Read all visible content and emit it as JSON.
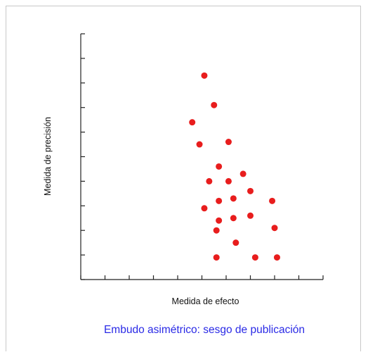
{
  "chart_data": {
    "type": "scatter",
    "xlabel": "Medida de efecto",
    "ylabel": "Medida de precisión",
    "caption": "Embudo asimétrico: sesgo de publicación",
    "xlim": [
      0,
      10
    ],
    "ylim": [
      0,
      10
    ],
    "x_ticks": [
      0,
      1,
      2,
      3,
      4,
      5,
      6,
      7,
      8,
      9,
      10
    ],
    "y_ticks": [
      0,
      1,
      2,
      3,
      4,
      5,
      6,
      7,
      8,
      9,
      10
    ],
    "grid": false,
    "point_color": "#e81d1d",
    "points": [
      {
        "x": 5.1,
        "y": 8.3
      },
      {
        "x": 5.5,
        "y": 7.1
      },
      {
        "x": 4.6,
        "y": 6.4
      },
      {
        "x": 4.9,
        "y": 5.5
      },
      {
        "x": 6.1,
        "y": 5.6
      },
      {
        "x": 5.7,
        "y": 4.6
      },
      {
        "x": 6.7,
        "y": 4.3
      },
      {
        "x": 5.3,
        "y": 4.0
      },
      {
        "x": 6.1,
        "y": 4.0
      },
      {
        "x": 7.0,
        "y": 3.6
      },
      {
        "x": 5.7,
        "y": 3.2
      },
      {
        "x": 6.3,
        "y": 3.3
      },
      {
        "x": 7.9,
        "y": 3.2
      },
      {
        "x": 5.1,
        "y": 2.9
      },
      {
        "x": 7.0,
        "y": 2.6
      },
      {
        "x": 5.7,
        "y": 2.4
      },
      {
        "x": 6.3,
        "y": 2.5
      },
      {
        "x": 5.6,
        "y": 2.0
      },
      {
        "x": 8.0,
        "y": 2.1
      },
      {
        "x": 6.4,
        "y": 1.5
      },
      {
        "x": 5.6,
        "y": 0.9
      },
      {
        "x": 7.2,
        "y": 0.9
      },
      {
        "x": 8.1,
        "y": 0.9
      }
    ]
  }
}
